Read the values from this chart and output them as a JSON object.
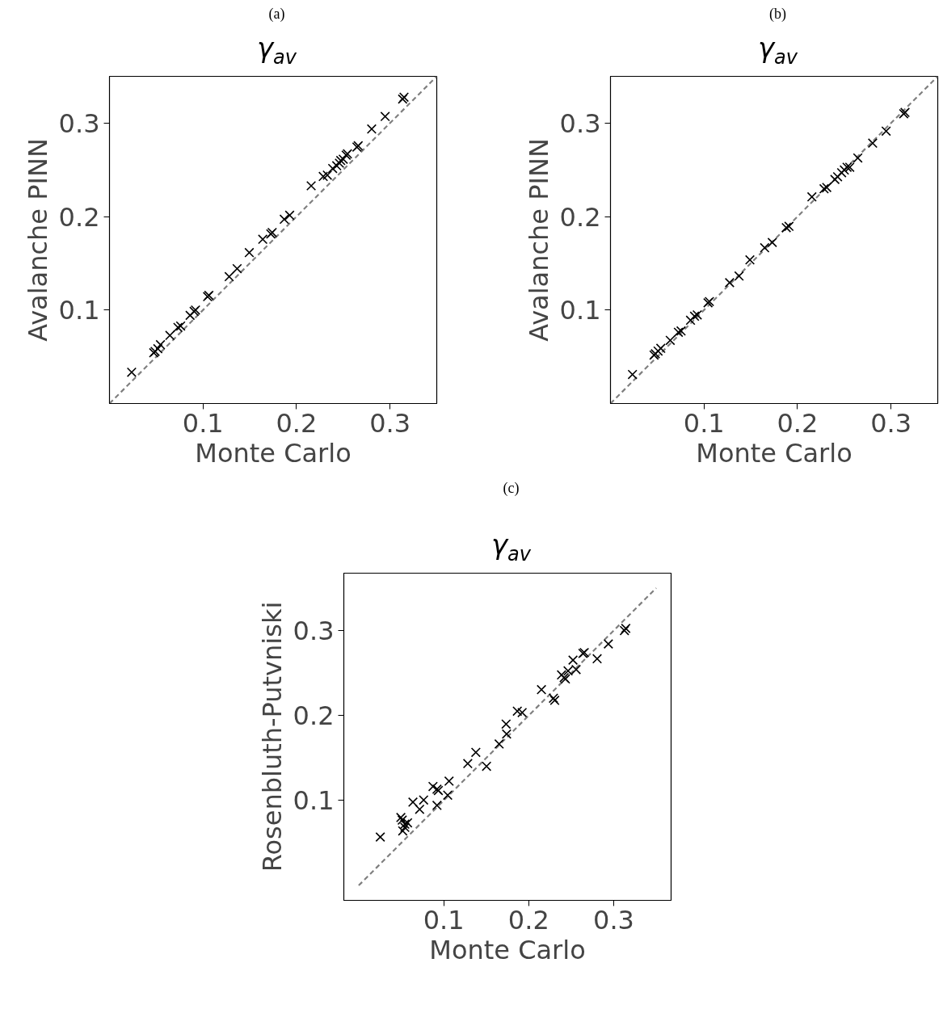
{
  "chart_data": [
    {
      "type": "scatter",
      "subtitle": "(a)",
      "title": "γ$_{av}$",
      "xlabel": "Monte Carlo",
      "ylabel": "Avalanche PINN",
      "xlim": [
        0,
        0.35
      ],
      "ylim": [
        0,
        0.35
      ],
      "xticks": [
        0.1,
        0.2,
        0.3
      ],
      "yticks": [
        0.1,
        0.2,
        0.3
      ],
      "marker": "cross",
      "series": [
        {
          "type": "line",
          "color": "#808080",
          "line_style": "dashed",
          "marker": "none",
          "x": [
            0,
            0.35
          ],
          "values": [
            0,
            0.35
          ]
        },
        {
          "color": "#000000",
          "x": [
            0.0237,
            0.0473,
            0.0488,
            0.0517,
            0.0545,
            0.0646,
            0.0732,
            0.0761,
            0.0862,
            0.0905,
            0.092,
            0.1049,
            0.1063,
            0.128,
            0.1365,
            0.1495,
            0.1639,
            0.1725,
            0.174,
            0.1869,
            0.1927,
            0.2157,
            0.2286,
            0.233,
            0.2387,
            0.243,
            0.2459,
            0.2473,
            0.25,
            0.2531,
            0.2545,
            0.2646,
            0.266,
            0.2804,
            0.2948,
            0.3135,
            0.315
          ],
          "values": [
            0.0334,
            0.0543,
            0.0557,
            0.0586,
            0.0629,
            0.0729,
            0.0814,
            0.0829,
            0.0943,
            0.0986,
            0.1,
            0.1143,
            0.1157,
            0.1357,
            0.1443,
            0.1614,
            0.1757,
            0.1814,
            0.1829,
            0.1971,
            0.2014,
            0.2329,
            0.2429,
            0.2443,
            0.2514,
            0.2543,
            0.2571,
            0.26,
            0.2614,
            0.2657,
            0.2671,
            0.2743,
            0.2757,
            0.2937,
            0.3071,
            0.3257,
            0.3277
          ]
        }
      ]
    },
    {
      "type": "scatter",
      "subtitle": "(b)",
      "title": "γ$_{av}$",
      "xlabel": "Monte Carlo",
      "ylabel": "Avalanche PINN",
      "xlim": [
        0,
        0.35
      ],
      "ylim": [
        0,
        0.35
      ],
      "xticks": [
        0.1,
        0.2,
        0.3
      ],
      "yticks": [
        0.1,
        0.2,
        0.3
      ],
      "marker": "cross",
      "series": [
        {
          "type": "line",
          "color": "#808080",
          "line_style": "dashed",
          "marker": "none",
          "x": [
            0,
            0.35
          ],
          "values": [
            0,
            0.35
          ]
        },
        {
          "color": "#000000",
          "x": [
            0.0235,
            0.0466,
            0.048,
            0.0509,
            0.0538,
            0.0639,
            0.0726,
            0.0755,
            0.0856,
            0.0899,
            0.0928,
            0.1043,
            0.1058,
            0.1274,
            0.1375,
            0.1491,
            0.1649,
            0.173,
            0.188,
            0.1909,
            0.2154,
            0.2284,
            0.2313,
            0.24,
            0.2429,
            0.2472,
            0.2501,
            0.253,
            0.2559,
            0.2645,
            0.2804,
            0.2948,
            0.3136,
            0.315
          ],
          "values": [
            0.0311,
            0.0518,
            0.0532,
            0.0561,
            0.059,
            0.0676,
            0.0762,
            0.0776,
            0.0891,
            0.0934,
            0.0948,
            0.1077,
            0.1091,
            0.1293,
            0.1364,
            0.1537,
            0.1666,
            0.1723,
            0.1881,
            0.1895,
            0.2211,
            0.2297,
            0.2311,
            0.2397,
            0.2426,
            0.2469,
            0.2498,
            0.2527,
            0.2527,
            0.2627,
            0.2785,
            0.2914,
            0.31,
            0.3114
          ]
        }
      ]
    },
    {
      "type": "scatter",
      "subtitle": "(c)",
      "title": "γ$_{av}$",
      "xlabel": "Monte Carlo",
      "ylabel": "Rosenbluth-Putvniski",
      "xlim": [
        -0.0175,
        0.3675
      ],
      "ylim": [
        -0.0175,
        0.3675
      ],
      "xticks": [
        0.1,
        0.2,
        0.3
      ],
      "yticks": [
        0.1,
        0.2,
        0.3
      ],
      "marker": "cross",
      "series": [
        {
          "type": "line",
          "color": "#808080",
          "line_style": "dashed",
          "marker": "none",
          "x": [
            0,
            0.35
          ],
          "values": [
            0,
            0.35
          ]
        },
        {
          "color": "#000000",
          "x": [
            0.0254,
            0.0496,
            0.0512,
            0.0543,
            0.0575,
            0.0518,
            0.0543,
            0.0638,
            0.0717,
            0.0764,
            0.0874,
            0.0921,
            0.0937,
            0.0921,
            0.1047,
            0.1063,
            0.1283,
            0.1378,
            0.1504,
            0.1652,
            0.174,
            0.1734,
            0.1866,
            0.1923,
            0.215,
            0.2291,
            0.2306,
            0.2386,
            0.2432,
            0.2463,
            0.2521,
            0.2558,
            0.2417,
            0.2638,
            0.2654,
            0.2805,
            0.2937,
            0.3126,
            0.3142
          ],
          "values": [
            0.057,
            0.08,
            0.0769,
            0.0722,
            0.0737,
            0.0642,
            0.0684,
            0.0981,
            0.0896,
            0.1006,
            0.1165,
            0.1133,
            0.1117,
            0.0943,
            0.1063,
            0.1228,
            0.1434,
            0.1566,
            0.1402,
            0.1665,
            0.1782,
            0.1899,
            0.2051,
            0.2035,
            0.2304,
            0.2203,
            0.2178,
            0.2478,
            0.243,
            0.2525,
            0.2652,
            0.2541,
            0.2446,
            0.2731,
            0.2741,
            0.2668,
            0.2842,
            0.3,
            0.3025
          ]
        }
      ]
    }
  ]
}
